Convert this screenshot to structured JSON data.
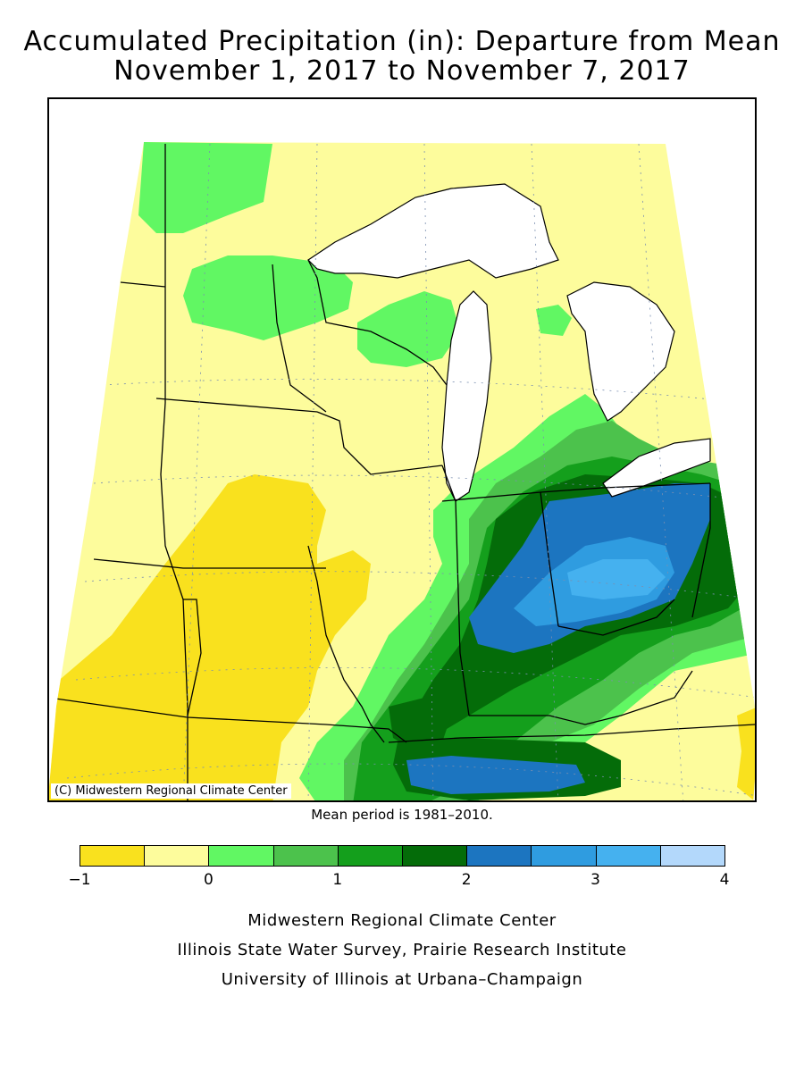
{
  "title_line1": "Accumulated Precipitation (in): Departure from Mean",
  "title_line2": "November 1, 2017 to November 7, 2017",
  "copyright": "(C) Midwestern Regional Climate Center",
  "mean_note": "Mean period is 1981–2010.",
  "legend": {
    "colors": [
      "#f9e11e",
      "#fdfc9c",
      "#61f763",
      "#4cc24c",
      "#149f1c",
      "#046c09",
      "#1c75c0",
      "#2f9ce0",
      "#45b1ef",
      "#b3d8fb"
    ],
    "ticks": [
      "−1",
      "0",
      "1",
      "2",
      "3",
      "4"
    ],
    "tick_values": [
      -1,
      0,
      1,
      2,
      3,
      4
    ],
    "min": -1,
    "max": 4
  },
  "credits": [
    "Midwestern Regional Climate Center",
    "Illinois State Water Survey, Prairie Research Institute",
    "University of Illinois at Urbana–Champaign"
  ]
}
